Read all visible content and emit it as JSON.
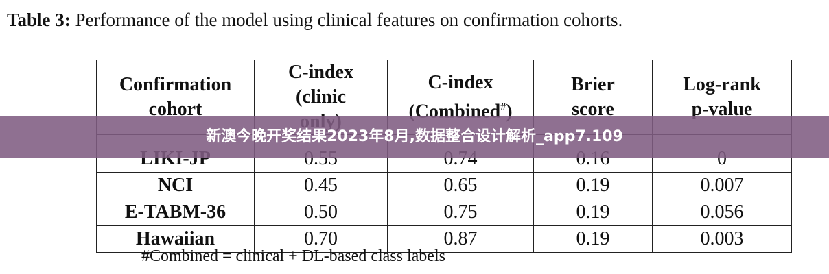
{
  "caption": {
    "label": "Table 3:",
    "text": "Performance of the model using clinical features on confirmation cohorts."
  },
  "table": {
    "header": [
      [
        "Confirmation",
        "cohort"
      ],
      [
        "C-index",
        "(clinic",
        "only)"
      ],
      [
        "C-index",
        {
          "text": "(Combined",
          "sup": "#",
          "after": ")"
        }
      ],
      [
        "Brier",
        "score"
      ],
      [
        "Log-rank",
        "p-value"
      ]
    ],
    "rows": [
      [
        "LIKI-JP",
        "0.55",
        "0.74",
        "0.16",
        "0"
      ],
      [
        "NCI",
        "0.45",
        "0.65",
        "0.19",
        "0.007"
      ],
      [
        "E-TABM-36",
        "0.50",
        "0.75",
        "0.19",
        "0.056"
      ],
      [
        "Hawaiian",
        "0.70",
        "0.87",
        "0.19",
        "0.003"
      ]
    ]
  },
  "footnote": "#Combined = clinical + DL-based class labels",
  "banner": "新澳今晚开奖结果2023年8月,数据整合设计解析_app7.109"
}
